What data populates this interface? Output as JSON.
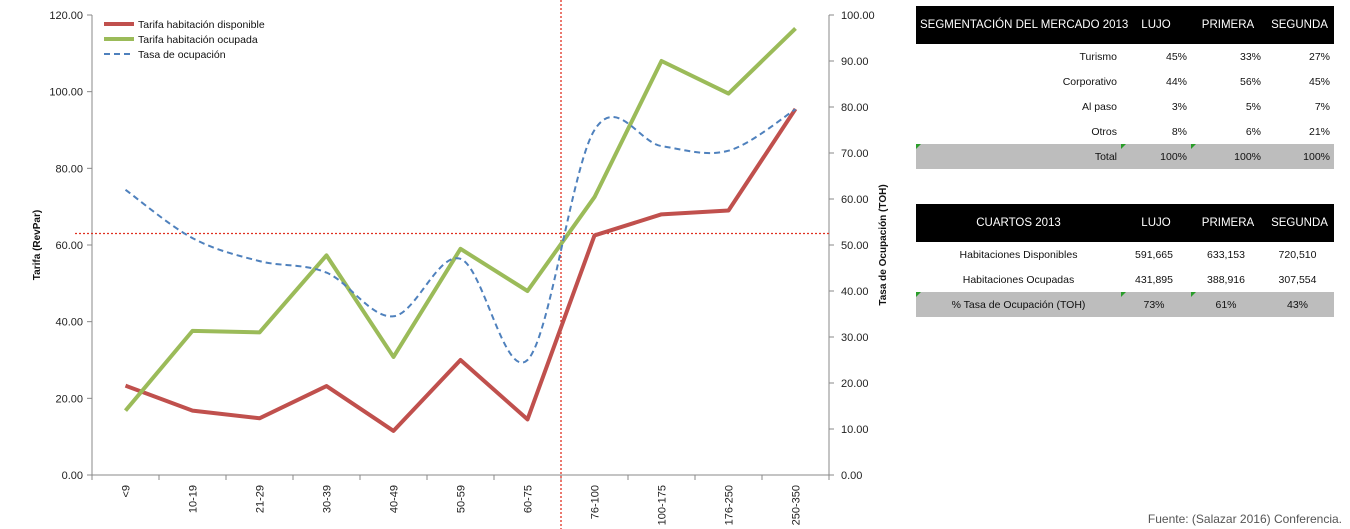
{
  "chart_data": {
    "type": "line",
    "categories": [
      "<9",
      "10-19",
      "21-29",
      "30-39",
      "40-49",
      "50-59",
      "60-75",
      "76-100",
      "100-175",
      "176-250",
      "250-350"
    ],
    "y_left": {
      "label": "Tarifa (RevPar)",
      "ylim": [
        0,
        120
      ],
      "ticks": [
        "0.00",
        "20.00",
        "40.00",
        "60.00",
        "80.00",
        "100.00",
        "120.00"
      ]
    },
    "y_right": {
      "label": "Tasa de Ocupación (TOH)",
      "ylim": [
        0,
        100
      ],
      "ticks": [
        "0.00",
        "10.00",
        "20.00",
        "30.00",
        "40.00",
        "50.00",
        "60.00",
        "70.00",
        "80.00",
        "90.00",
        "100.00"
      ]
    },
    "series": [
      {
        "name": "Tarifa habitación disponible",
        "axis": "left",
        "color": "#c0504d",
        "style": "solid",
        "values": [
          23.3,
          16.8,
          14.8,
          23.2,
          11.5,
          30.0,
          14.5,
          62.5,
          68.0,
          69.0,
          95.5
        ]
      },
      {
        "name": "Tarifa habitación ocupada",
        "axis": "left",
        "color": "#9bbb59",
        "style": "solid",
        "values": [
          16.8,
          37.6,
          37.2,
          57.3,
          30.8,
          59.0,
          48.0,
          72.5,
          108.0,
          99.5,
          116.5
        ]
      },
      {
        "name": "Tasa de ocupación",
        "axis": "right",
        "color": "#4f81bd",
        "style": "dashed",
        "values": [
          62.0,
          51.5,
          46.5,
          44.0,
          34.5,
          47.0,
          25.0,
          75.0,
          71.5,
          70.5,
          79.5
        ]
      }
    ],
    "reference_lines": {
      "horizontal_left_value": 63,
      "vertical_between": [
        "60-75",
        "76-100"
      ]
    },
    "legend": "top-left",
    "grid": false
  },
  "segmentacion": {
    "title": "SEGMENTACIÓN DEL MERCADO  2013",
    "columns": [
      "LUJO",
      "PRIMERA",
      "SEGUNDA"
    ],
    "rows": [
      {
        "label": "Turismo",
        "values": [
          "45%",
          "33%",
          "27%"
        ]
      },
      {
        "label": "Corporativo",
        "values": [
          "44%",
          "56%",
          "45%"
        ]
      },
      {
        "label": "Al paso",
        "values": [
          "3%",
          "5%",
          "7%"
        ]
      },
      {
        "label": "Otros",
        "values": [
          "8%",
          "6%",
          "21%"
        ]
      }
    ],
    "total": {
      "label": "Total",
      "values": [
        "100%",
        "100%",
        "100%"
      ]
    }
  },
  "cuartos": {
    "title": "CUARTOS 2013",
    "columns": [
      "LUJO",
      "PRIMERA",
      "SEGUNDA"
    ],
    "rows": [
      {
        "label": "Habitaciones Disponibles",
        "values": [
          "591,665",
          "633,153",
          "720,510"
        ]
      },
      {
        "label": "Habitaciones Ocupadas",
        "values": [
          "431,895",
          "388,916",
          "307,554"
        ]
      }
    ],
    "total": {
      "label": "% Tasa de Ocupación (TOH)",
      "values": [
        "73%",
        "61%",
        "43%"
      ]
    }
  },
  "source": "Fuente: (Salazar 2016) Conferencia."
}
